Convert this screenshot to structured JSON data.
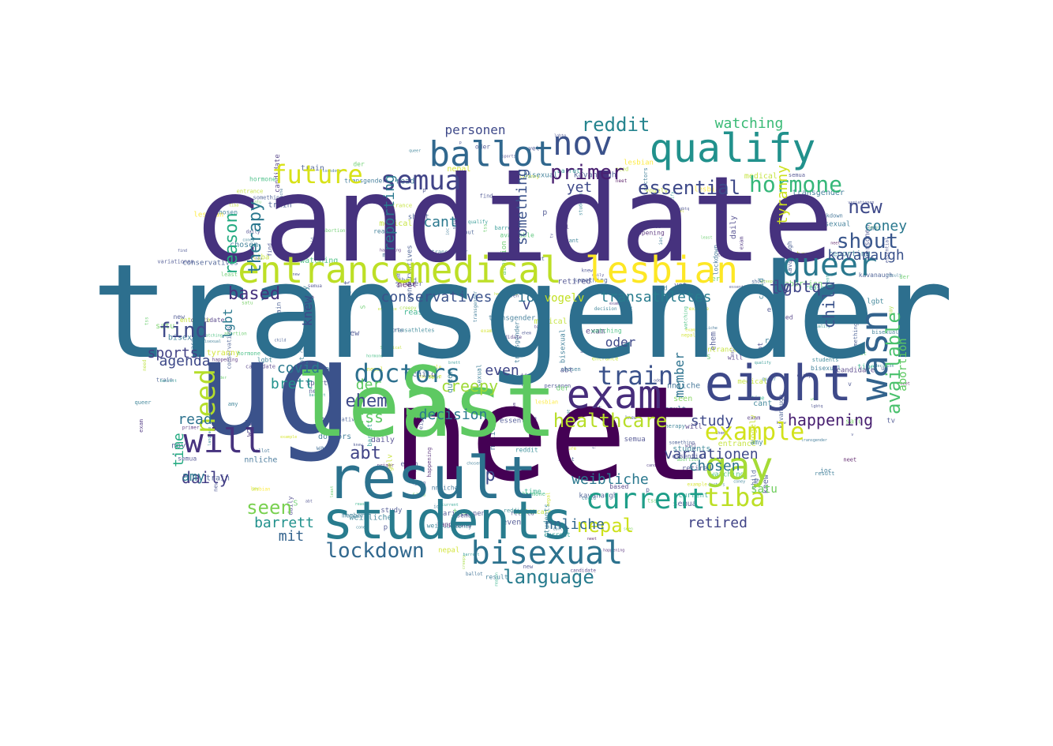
{
  "cloud": {
    "words": [
      {
        "text": "transgender",
        "color": "#2d6f8e"
      },
      {
        "text": "candidate",
        "color": "#46327e"
      },
      {
        "text": "neet",
        "color": "#440154"
      },
      {
        "text": "ug",
        "color": "#3b528b"
      },
      {
        "text": "result",
        "color": "#2c728e"
      },
      {
        "text": "students",
        "color": "#287c8e"
      },
      {
        "text": "qualify",
        "color": "#21918c"
      },
      {
        "text": "eight",
        "color": "#3e4989"
      },
      {
        "text": "exam",
        "color": "#472d7b"
      },
      {
        "text": "least",
        "color": "#5ec962"
      },
      {
        "text": "entrance",
        "color": "#bddf26"
      },
      {
        "text": "medical",
        "color": "#bddf26"
      },
      {
        "text": "lesbian",
        "color": "#fde725"
      },
      {
        "text": "queer",
        "color": "#2a788e"
      },
      {
        "text": "wasn",
        "color": "#33638d"
      },
      {
        "text": "ballot",
        "color": "#31688e"
      },
      {
        "text": "bisexual",
        "color": "#2c728e"
      },
      {
        "text": "gay",
        "color": "#a5db36"
      },
      {
        "text": "semua",
        "color": "#414487"
      },
      {
        "text": "nov",
        "color": "#3b528b"
      },
      {
        "text": "doctors",
        "color": "#2d708e"
      },
      {
        "text": "S",
        "color": "#5ec962"
      },
      {
        "text": "will",
        "color": "#46327e"
      },
      {
        "text": "current",
        "color": "#1f9e89"
      },
      {
        "text": "example",
        "color": "#d2e21b"
      },
      {
        "text": "train",
        "color": "#3b528b"
      },
      {
        "text": "future",
        "color": "#d8e219"
      },
      {
        "text": "hormone",
        "color": "#35b779"
      },
      {
        "text": "need",
        "color": "#b5de2b"
      },
      {
        "text": "tiba",
        "color": "#bddf26"
      },
      {
        "text": "lockdown",
        "color": "#31688e"
      },
      {
        "text": "language",
        "color": "#287c8e"
      },
      {
        "text": "essential",
        "color": "#3e4989"
      },
      {
        "text": "reddit",
        "color": "#25848e"
      },
      {
        "text": "primer",
        "color": "#481f70"
      },
      {
        "text": "watching",
        "color": "#3aba76"
      },
      {
        "text": "shout",
        "color": "#39568c"
      },
      {
        "text": "available",
        "color": "#4ac16d"
      },
      {
        "text": "healthcare",
        "color": "#b8de29"
      },
      {
        "text": "happening",
        "color": "#481f70"
      },
      {
        "text": "conservatives",
        "color": "#3b528b"
      },
      {
        "text": "transathletes",
        "color": "#287c8e"
      },
      {
        "text": "ioc",
        "color": "#2d708e"
      },
      {
        "text": "lgbtq",
        "color": "#404688"
      },
      {
        "text": "tv",
        "color": "#3e4989"
      },
      {
        "text": "find",
        "color": "#3e4989"
      },
      {
        "text": "sports",
        "color": "#424186"
      },
      {
        "text": "daily",
        "color": "#433e85"
      },
      {
        "text": "read",
        "color": "#2c728e"
      },
      {
        "text": "abt",
        "color": "#414487"
      },
      {
        "text": "tss",
        "color": "#5ec962"
      },
      {
        "text": "ehem",
        "color": "#3e4989"
      },
      {
        "text": "creepy",
        "color": "#a0da39"
      },
      {
        "text": "even",
        "color": "#404688"
      },
      {
        "text": "time",
        "color": "#25ab82"
      },
      {
        "text": "seen",
        "color": "#7ad151"
      },
      {
        "text": "barrett",
        "color": "#21918c"
      },
      {
        "text": "mit",
        "color": "#33638d"
      },
      {
        "text": "brett",
        "color": "#21918c"
      },
      {
        "text": "covid",
        "color": "#2a788e"
      },
      {
        "text": "based",
        "color": "#46327e"
      },
      {
        "text": "reason",
        "color": "#25ab82"
      },
      {
        "text": "therapy",
        "color": "#2a788e"
      },
      {
        "text": "new",
        "color": "#3e4989"
      },
      {
        "text": "coney",
        "color": "#2a788e"
      },
      {
        "text": "kavanaugh",
        "color": "#3b528b"
      },
      {
        "text": "child",
        "color": "#3b528b"
      },
      {
        "text": "nepal",
        "color": "#cde11d"
      },
      {
        "text": "retired",
        "color": "#414487"
      },
      {
        "text": "weibliche",
        "color": "#2a788e"
      },
      {
        "text": "variationen",
        "color": "#3e4989"
      },
      {
        "text": "chosen",
        "color": "#2c728e"
      },
      {
        "text": "nnliche",
        "color": "#31688e"
      },
      {
        "text": "satu",
        "color": "#6ccd5a"
      },
      {
        "text": "study",
        "color": "#3e4989"
      },
      {
        "text": "member",
        "color": "#2c728e"
      },
      {
        "text": "vogelv",
        "color": "#c2df23"
      },
      {
        "text": "decision",
        "color": "#2a788e"
      },
      {
        "text": "cant",
        "color": "#2a788e"
      },
      {
        "text": "reporting",
        "color": "#2a788e"
      },
      {
        "text": "something",
        "color": "#3b528b"
      },
      {
        "text": "yet",
        "color": "#3e4989"
      },
      {
        "text": "personen",
        "color": "#3e4989"
      },
      {
        "text": "tyranny",
        "color": "#cde11d"
      },
      {
        "text": "agenda",
        "color": "#3e4989"
      },
      {
        "text": "knew",
        "color": "#3e4989"
      },
      {
        "text": "der",
        "color": "#5ec962"
      },
      {
        "text": "lgbt",
        "color": "#2a788e"
      },
      {
        "text": "abortion",
        "color": "#5ec962"
      },
      {
        "text": "amy",
        "color": "#2a788e"
      },
      {
        "text": "oder",
        "color": "#3e4989"
      },
      {
        "text": "p",
        "color": "#3e4989"
      },
      {
        "text": "v",
        "color": "#3e4989"
      }
    ]
  }
}
